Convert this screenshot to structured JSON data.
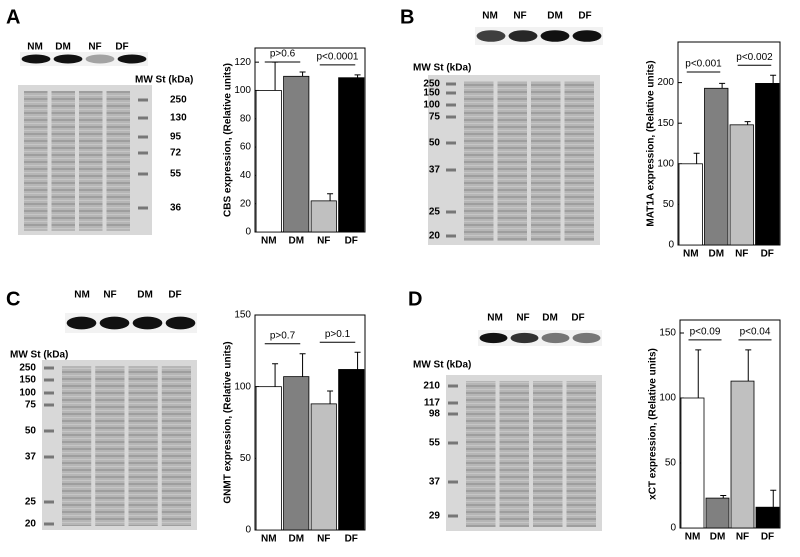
{
  "chart_data": [
    {
      "type": "bar",
      "panel": "A",
      "y_label": "CBS expression, (Relative units)",
      "categories": [
        "NM",
        "DM",
        "NF",
        "DF"
      ],
      "values": [
        100,
        110,
        22,
        109
      ],
      "errors": [
        20,
        3,
        5,
        2
      ],
      "colors": [
        "#ffffff",
        "#808080",
        "#c0c0c0",
        "#000000"
      ],
      "ylim": [
        0,
        130
      ],
      "yticks": [
        0,
        20,
        40,
        60,
        80,
        100,
        120
      ],
      "annotations": [
        "p>0.6",
        "p<0.0001"
      ],
      "blot": {
        "lanes": [
          "NM",
          "DM",
          "NF",
          "DF"
        ],
        "mw_label": "MW St (kDa)",
        "mw_markers": [
          250,
          130,
          95,
          72,
          55,
          36
        ]
      }
    },
    {
      "type": "bar",
      "panel": "B",
      "y_label": "MAT1A expression, (Relative units)",
      "categories": [
        "NM",
        "DM",
        "NF",
        "DF"
      ],
      "values": [
        100,
        193,
        148,
        199
      ],
      "errors": [
        13,
        6,
        4,
        10
      ],
      "colors": [
        "#ffffff",
        "#808080",
        "#c0c0c0",
        "#000000"
      ],
      "ylim": [
        0,
        250
      ],
      "yticks": [
        0,
        50,
        100,
        150,
        200
      ],
      "annotations": [
        "p<0.001",
        "p<0.002"
      ],
      "blot": {
        "lanes": [
          "NM",
          "NF",
          "DM",
          "DF"
        ],
        "mw_label": "MW St (kDa)",
        "mw_markers": [
          250,
          150,
          100,
          75,
          50,
          37,
          25,
          20
        ]
      }
    },
    {
      "type": "bar",
      "panel": "C",
      "y_label": "GNMT expression, (Relative units)",
      "categories": [
        "NM",
        "DM",
        "NF",
        "DF"
      ],
      "values": [
        100,
        107,
        88,
        112
      ],
      "errors": [
        16,
        16,
        9,
        12
      ],
      "colors": [
        "#ffffff",
        "#808080",
        "#c0c0c0",
        "#000000"
      ],
      "ylim": [
        0,
        150
      ],
      "yticks": [
        0,
        50,
        100,
        150
      ],
      "annotations": [
        "p>0.7",
        "p>0.1"
      ],
      "blot": {
        "lanes": [
          "NM",
          "NF",
          "DM",
          "DF"
        ],
        "mw_label": "MW St (kDa)",
        "mw_markers": [
          250,
          150,
          100,
          75,
          50,
          37,
          25,
          20
        ]
      }
    },
    {
      "type": "bar",
      "panel": "D",
      "y_label": "xCT expression, (Relative units)",
      "categories": [
        "NM",
        "DM",
        "NF",
        "DF"
      ],
      "values": [
        100,
        23,
        113,
        16
      ],
      "errors": [
        37,
        2,
        24,
        13
      ],
      "colors": [
        "#ffffff",
        "#808080",
        "#c0c0c0",
        "#000000"
      ],
      "ylim": [
        0,
        160
      ],
      "yticks": [
        0,
        50,
        100,
        150
      ],
      "annotations": [
        "p<0.09",
        "p<0.04"
      ],
      "blot": {
        "lanes": [
          "NM",
          "NF",
          "DM",
          "DF"
        ],
        "mw_label": "MW St (kDa)",
        "mw_markers": [
          210,
          117,
          98,
          55,
          37,
          29
        ]
      }
    }
  ]
}
